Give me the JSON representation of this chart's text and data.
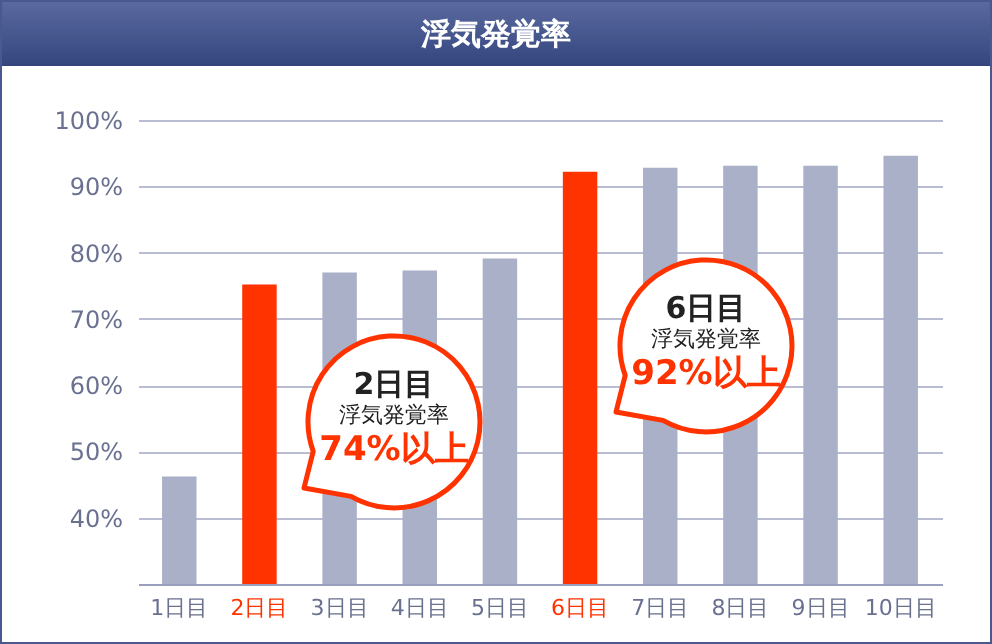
{
  "chart_data": {
    "type": "bar",
    "title": "浮気発覚率",
    "categories": [
      "1日目",
      "2日目",
      "3日目",
      "4日目",
      "5日目",
      "6日目",
      "7日目",
      "8日目",
      "9日目",
      "10日目"
    ],
    "values": [
      46.2,
      75.2,
      77.0,
      77.3,
      79.1,
      92.2,
      92.8,
      93.1,
      93.1,
      94.6
    ],
    "colors": [
      "#aab0c8",
      "#ff3300",
      "#aab0c8",
      "#aab0c8",
      "#aab0c8",
      "#ff3300",
      "#aab0c8",
      "#aab0c8",
      "#aab0c8",
      "#aab0c8"
    ],
    "ylim": [
      30,
      100
    ],
    "yticks": [
      {
        "value": 40,
        "label": "40%"
      },
      {
        "value": 50,
        "label": "50%"
      },
      {
        "value": 60,
        "label": "60%"
      },
      {
        "value": 70,
        "label": "70%"
      },
      {
        "value": 80,
        "label": "80%"
      },
      {
        "value": 90,
        "label": "90%"
      },
      {
        "value": 100,
        "label": "100%"
      }
    ],
    "grid": "y",
    "annotations": [
      "2日目",
      "浮気発覚率",
      "74%以上",
      "6日目",
      "浮気発覚率",
      "92%以上"
    ]
  }
}
